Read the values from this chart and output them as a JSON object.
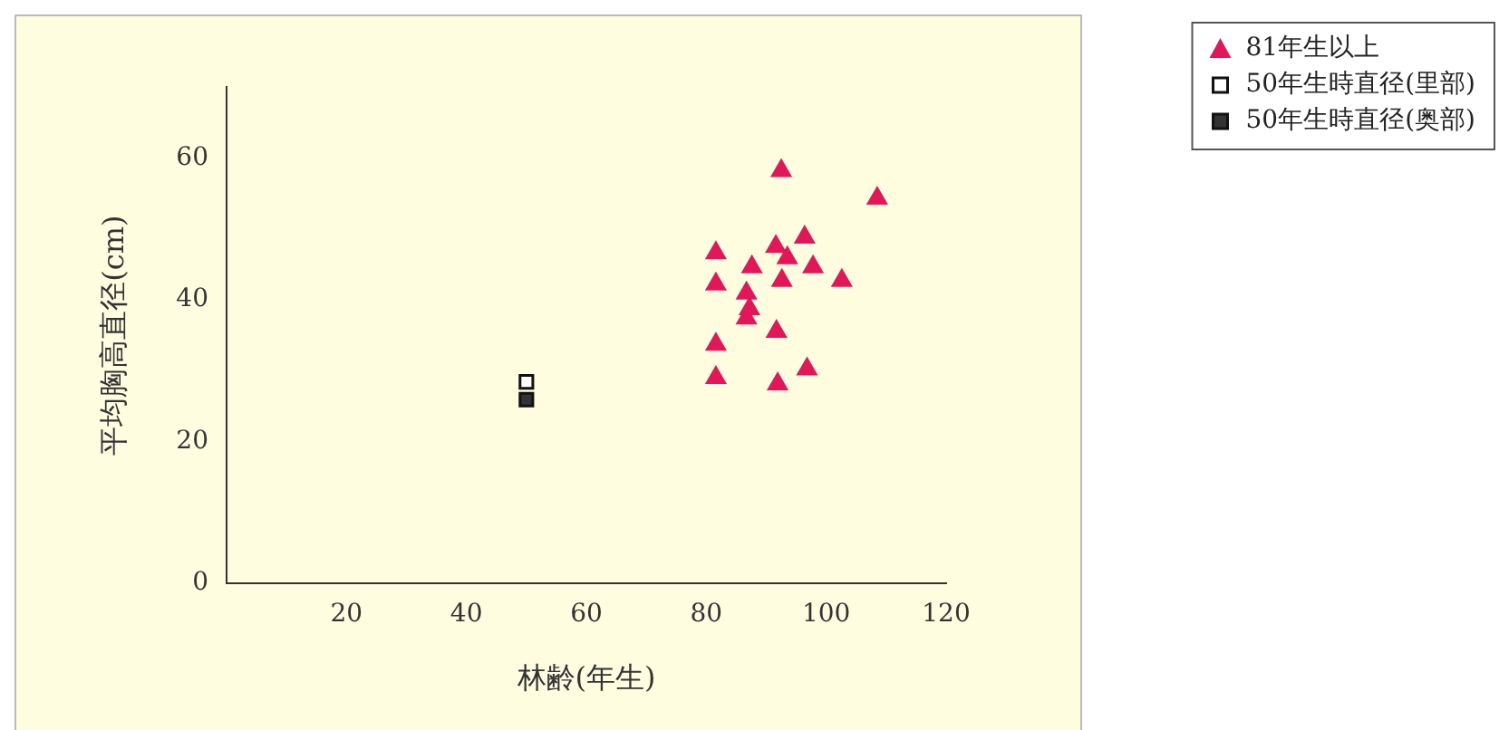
{
  "chart_data": {
    "type": "scatter",
    "xlabel": "林齢(年生)",
    "ylabel": "平均胸高直径(cm)",
    "xlim": [
      0,
      120
    ],
    "xticks": [
      20,
      40,
      60,
      80,
      100,
      120
    ],
    "ylim": [
      0,
      70
    ],
    "yticks": [
      0,
      20,
      40,
      60
    ],
    "grid": false,
    "legend": "top right",
    "series": [
      {
        "name": "81年生以上",
        "color": "#e0185a",
        "marker": "triangle",
        "x": [
          92.5,
          108.5,
          81.6,
          96.4,
          91.6,
          93.5,
          87.6,
          97.8,
          81.6,
          92.6,
          102.6,
          86.7,
          87.2,
          86.7,
          91.7,
          81.6,
          96.8,
          81.6,
          91.9
        ],
        "values": [
          58.2,
          54.3,
          46.6,
          48.8,
          47.5,
          45.9,
          44.6,
          44.6,
          42.2,
          42.7,
          42.7,
          40.9,
          38.7,
          37.4,
          35.5,
          33.7,
          30.2,
          29.0,
          28.1
        ]
      },
      {
        "name": "50年生時直径(里部)",
        "color": "#ffffff",
        "marker": "square",
        "x": [
          50
        ],
        "values": [
          28.4
        ]
      },
      {
        "name": "50年生時直径(奥部)",
        "color": "#333333",
        "marker": "square",
        "x": [
          50
        ],
        "values": [
          25.9
        ]
      }
    ]
  }
}
